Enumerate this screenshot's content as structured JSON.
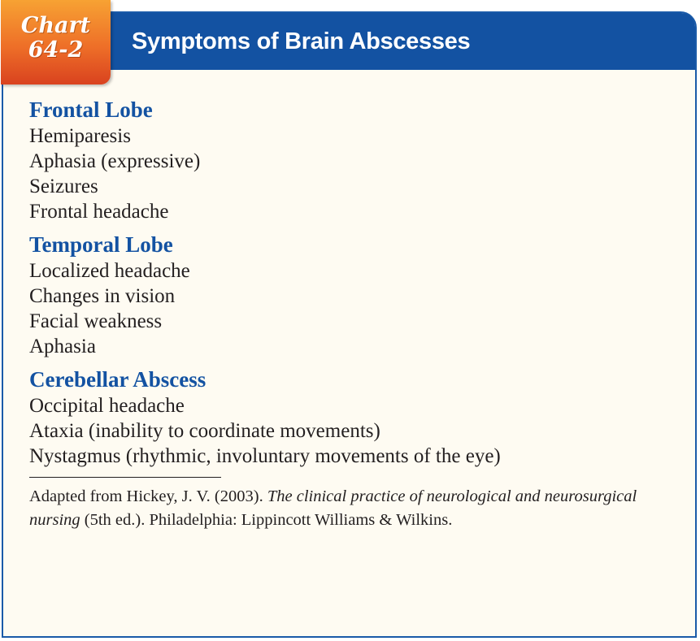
{
  "chart_label": {
    "word": "Chart",
    "number": "64-2"
  },
  "title": "Symptoms of Brain Abscesses",
  "sections": [
    {
      "heading": "Frontal Lobe",
      "items": [
        "Hemiparesis",
        "Aphasia (expressive)",
        "Seizures",
        "Frontal headache"
      ]
    },
    {
      "heading": "Temporal Lobe",
      "items": [
        "Localized headache",
        "Changes in vision",
        "Facial weakness",
        "Aphasia"
      ]
    },
    {
      "heading": "Cerebellar Abscess",
      "items": [
        "Occipital headache",
        "Ataxia (inability to coordinate movements)",
        "Nystagmus (rhythmic, involuntary movements of the eye)"
      ]
    }
  ],
  "footnote": {
    "prefix": "Adapted from Hickey, J. V. (2003). ",
    "book_title": "The clinical practice of neurological and neurosurgical nursing",
    "suffix": " (5th ed.). Philadelphia: Lippincott Williams & Wilkins."
  },
  "colors": {
    "header_blue": "#1352a2",
    "tab_orange": "#ee6f28",
    "panel_background": "#fefbf2"
  }
}
